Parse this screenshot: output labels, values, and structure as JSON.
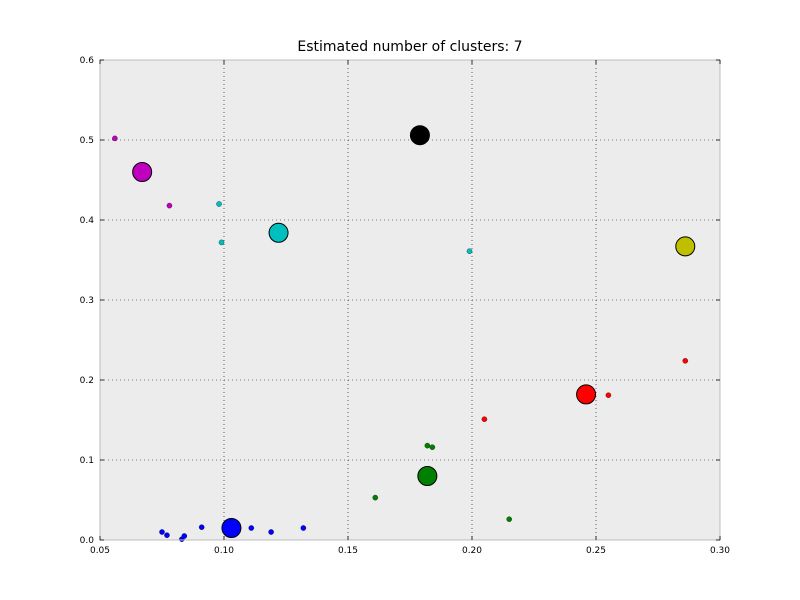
{
  "chart_data": {
    "type": "scatter",
    "title": "Estimated number of clusters: 7",
    "xlabel": "",
    "ylabel": "",
    "xlim": [
      0.05,
      0.3
    ],
    "ylim": [
      0.0,
      0.6
    ],
    "xticks": [
      "0.05",
      "0.10",
      "0.15",
      "0.20",
      "0.25",
      "0.30"
    ],
    "yticks": [
      "0.0",
      "0.1",
      "0.2",
      "0.3",
      "0.4",
      "0.5",
      "0.6"
    ],
    "grid": true,
    "background": "#ececec",
    "clusters": [
      {
        "color": "#0000ff",
        "center": [
          0.103,
          0.015
        ],
        "points": [
          [
            0.075,
            0.01
          ],
          [
            0.077,
            0.006
          ],
          [
            0.083,
            0.001
          ],
          [
            0.084,
            0.005
          ],
          [
            0.091,
            0.016
          ],
          [
            0.111,
            0.015
          ],
          [
            0.119,
            0.01
          ],
          [
            0.132,
            0.015
          ]
        ]
      },
      {
        "color": "#008000",
        "center": [
          0.182,
          0.08
        ],
        "points": [
          [
            0.161,
            0.053
          ],
          [
            0.182,
            0.118
          ],
          [
            0.184,
            0.116
          ],
          [
            0.215,
            0.026
          ]
        ]
      },
      {
        "color": "#ff0000",
        "center": [
          0.246,
          0.182
        ],
        "points": [
          [
            0.205,
            0.151
          ],
          [
            0.255,
            0.181
          ],
          [
            0.286,
            0.224
          ]
        ]
      },
      {
        "color": "#00bfbf",
        "center": [
          0.122,
          0.384
        ],
        "points": [
          [
            0.098,
            0.42
          ],
          [
            0.099,
            0.372
          ],
          [
            0.199,
            0.361
          ]
        ]
      },
      {
        "color": "#bf00bf",
        "center": [
          0.067,
          0.46
        ],
        "points": [
          [
            0.056,
            0.502
          ],
          [
            0.078,
            0.418
          ]
        ]
      },
      {
        "color": "#bfbf00",
        "center": [
          0.286,
          0.367
        ],
        "points": []
      },
      {
        "color": "#000000",
        "center": [
          0.179,
          0.506
        ],
        "points": []
      }
    ]
  }
}
